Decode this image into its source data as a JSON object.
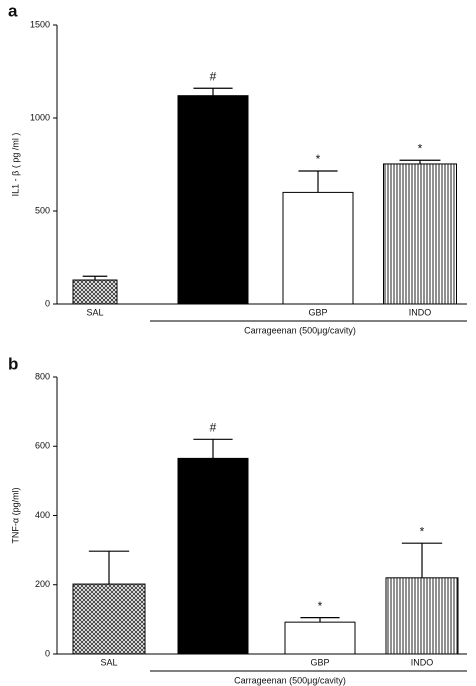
{
  "chart_data": [
    {
      "type": "bar",
      "panel_label": "a",
      "ylabel": "IL1 - β ( pg /ml )",
      "categories": [
        "SAL",
        null,
        "GBP",
        "INDO"
      ],
      "values": [
        129,
        1120,
        600,
        753
      ],
      "errors": [
        20,
        40,
        115,
        20
      ],
      "annotations": [
        null,
        "#",
        "*",
        "*"
      ],
      "fills": [
        "crosshatch",
        "#000000",
        "#ffffff",
        "vstripes"
      ],
      "group_label": "Carrageenan  (500μg/cavity)",
      "ylim": [
        0,
        1500
      ],
      "yticks": [
        0,
        500,
        1000,
        1500
      ]
    },
    {
      "type": "bar",
      "panel_label": "b",
      "ylabel": "TNF-α (pg/ml)",
      "categories": [
        "SAL",
        null,
        "GBP",
        "INDO"
      ],
      "values": [
        202,
        565,
        92,
        220
      ],
      "errors": [
        95,
        55,
        13,
        100
      ],
      "annotations": [
        null,
        "#",
        "*",
        "*"
      ],
      "fills": [
        "crosshatch",
        "#000000",
        "#ffffff",
        "vstripes"
      ],
      "group_label": "Carrageenan (500μg/cavity)",
      "ylim": [
        0,
        800
      ],
      "yticks": [
        0,
        200,
        400,
        600,
        800
      ]
    }
  ]
}
